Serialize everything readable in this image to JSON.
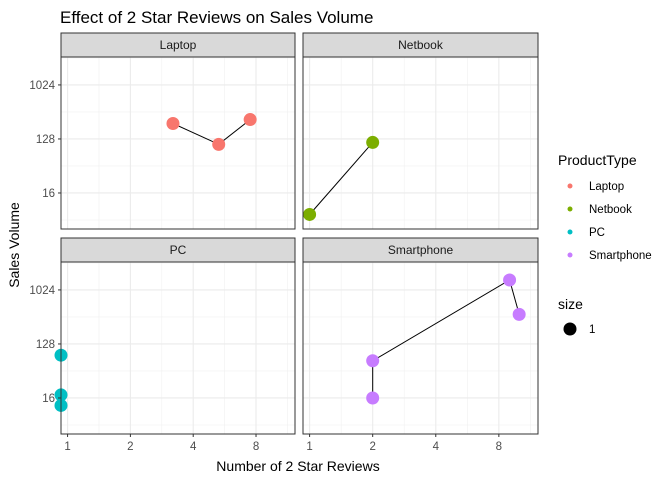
{
  "chart_data": {
    "type": "scatter",
    "title": "Effect of 2 Star Reviews on Sales Volume",
    "xlabel": "Number of 2 Star Reviews",
    "ylabel": "Sales Volume",
    "x_scale": "log2",
    "y_scale": "log2",
    "xlim": [
      0.93,
      12.3
    ],
    "ylim": [
      4.0,
      3000
    ],
    "x_ticks": [
      1,
      2,
      4,
      8
    ],
    "x_tick_labels": [
      "1",
      "2",
      "4",
      "8"
    ],
    "y_ticks": [
      16,
      128,
      1024
    ],
    "y_tick_labels": [
      "16",
      "128",
      "1024"
    ],
    "grid": true,
    "points_connected": true,
    "legend_position": "right",
    "facets": [
      {
        "label": "Laptop",
        "series": "Laptop",
        "points": [
          {
            "x": 3.2,
            "y": 232
          },
          {
            "x": 5.3,
            "y": 104
          },
          {
            "x": 7.5,
            "y": 270
          }
        ]
      },
      {
        "label": "Netbook",
        "series": "Netbook",
        "points": [
          {
            "x": 1.0,
            "y": 7
          },
          {
            "x": 2.0,
            "y": 112
          }
        ]
      },
      {
        "label": "PC",
        "series": "PC",
        "points": [
          {
            "x": 0.93,
            "y": 12
          },
          {
            "x": 0.93,
            "y": 18
          },
          {
            "x": 0.93,
            "y": 83
          }
        ]
      },
      {
        "label": "Smartphone",
        "series": "Smartphone",
        "points": [
          {
            "x": 2.0,
            "y": 16
          },
          {
            "x": 2.0,
            "y": 67
          },
          {
            "x": 9.0,
            "y": 1500
          },
          {
            "x": 10.0,
            "y": 400
          }
        ]
      }
    ],
    "series": [
      {
        "name": "Laptop",
        "color": "#F8766D"
      },
      {
        "name": "Netbook",
        "color": "#7CAE00"
      },
      {
        "name": "PC",
        "color": "#00BFC4"
      },
      {
        "name": "Smartphone",
        "color": "#C77CFF"
      }
    ],
    "legend": {
      "color_title": "ProductType",
      "size_title": "size",
      "size_label": "1"
    }
  }
}
